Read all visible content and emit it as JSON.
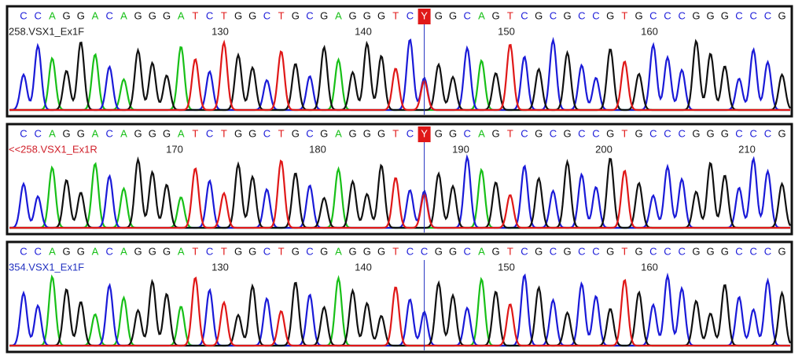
{
  "panels": [
    {
      "label": "258.VSX1_Ex1F",
      "label_color": "#222222",
      "sequence": [
        "C",
        "C",
        "A",
        "G",
        "G",
        "A",
        "C",
        "A",
        "G",
        "G",
        "G",
        "A",
        "T",
        "C",
        "T",
        "G",
        "G",
        "C",
        "T",
        "G",
        "C",
        "G",
        "A",
        "G",
        "G",
        "G",
        "T",
        "C",
        "Y",
        "G",
        "G",
        "C",
        "A",
        "G",
        "T",
        "C",
        "G",
        "C",
        "G",
        "C",
        "C",
        "G",
        "T",
        "G",
        "C",
        "C",
        "C",
        "G",
        "G",
        "G",
        "C",
        "C",
        "C",
        "G"
      ],
      "positions": [
        130,
        140,
        150,
        160
      ]
    },
    {
      "label": "<<258.VSX1_Ex1R",
      "label_color": "#d0202a",
      "sequence": [
        "C",
        "C",
        "A",
        "G",
        "G",
        "A",
        "C",
        "A",
        "G",
        "G",
        "G",
        "A",
        "T",
        "C",
        "T",
        "G",
        "G",
        "C",
        "T",
        "G",
        "C",
        "G",
        "A",
        "G",
        "G",
        "G",
        "T",
        "C",
        "Y",
        "G",
        "G",
        "C",
        "A",
        "G",
        "T",
        "C",
        "G",
        "C",
        "G",
        "C",
        "C",
        "G",
        "T",
        "G",
        "C",
        "C",
        "C",
        "G",
        "G",
        "G",
        "C",
        "C",
        "C",
        "G"
      ],
      "positions": [
        170,
        180,
        190,
        200,
        210
      ]
    },
    {
      "label": "354.VSX1_Ex1F",
      "label_color": "#2030c0",
      "sequence": [
        "C",
        "C",
        "A",
        "G",
        "G",
        "A",
        "C",
        "A",
        "G",
        "G",
        "G",
        "A",
        "T",
        "C",
        "T",
        "G",
        "G",
        "C",
        "T",
        "G",
        "C",
        "G",
        "A",
        "G",
        "G",
        "G",
        "T",
        "C",
        "C",
        "G",
        "G",
        "C",
        "A",
        "G",
        "T",
        "C",
        "G",
        "C",
        "G",
        "C",
        "C",
        "G",
        "T",
        "G",
        "C",
        "C",
        "C",
        "G",
        "G",
        "G",
        "C",
        "C",
        "C",
        "G"
      ],
      "positions": [
        130,
        140,
        150,
        160
      ]
    }
  ]
}
